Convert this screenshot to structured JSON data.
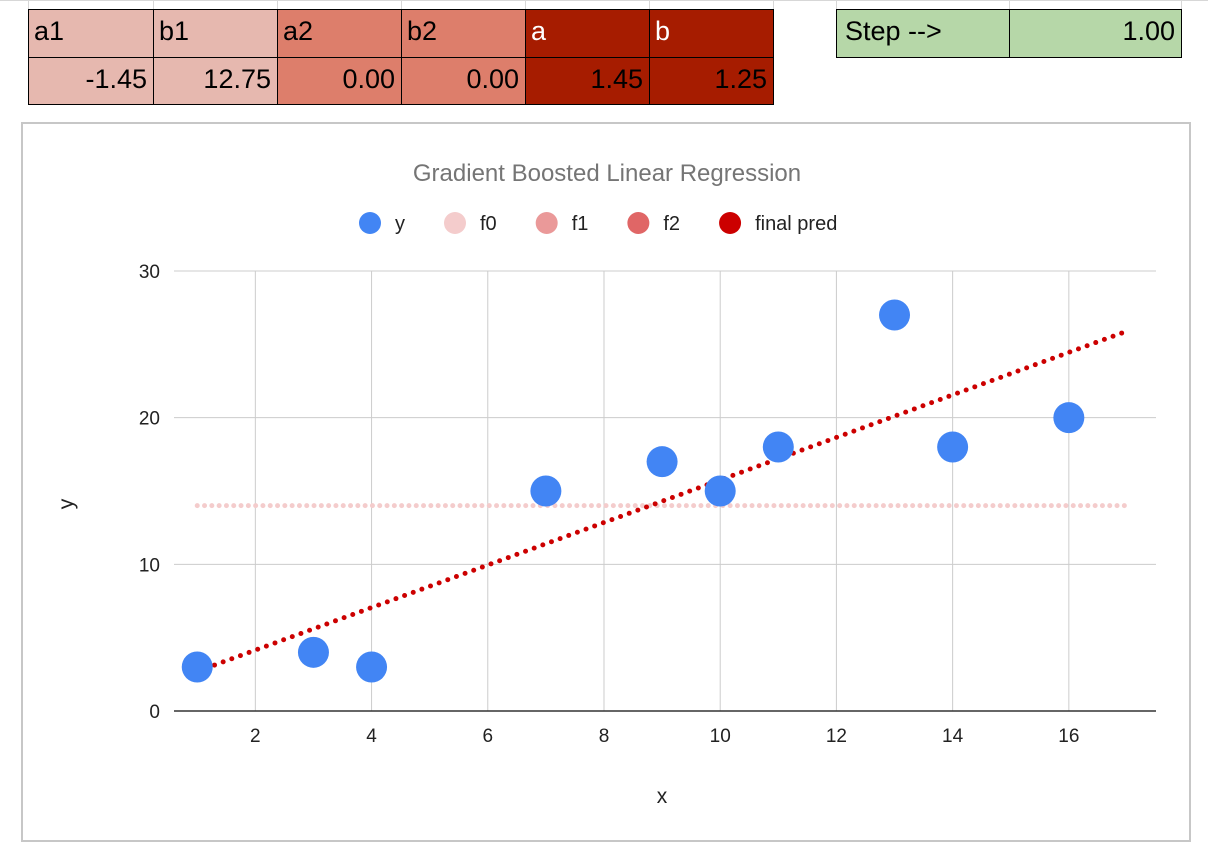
{
  "sheet": {
    "params": [
      {
        "label": "a1",
        "value": "-1.45",
        "color": "#e6b8af"
      },
      {
        "label": "b1",
        "value": "12.75",
        "color": "#e6b8af"
      },
      {
        "label": "a2",
        "value": "0.00",
        "color": "#dd7e6b"
      },
      {
        "label": "b2",
        "value": "0.00",
        "color": "#dd7e6b"
      },
      {
        "label": "a",
        "value": "1.45",
        "color": "#a61c00"
      },
      {
        "label": "b",
        "value": "1.25",
        "color": "#a61c00"
      }
    ],
    "step": {
      "label": "Step -->",
      "value": "1.00",
      "color": "#b6d7a8"
    }
  },
  "chart_data": {
    "type": "scatter",
    "title": "Gradient Boosted Linear Regression",
    "xlabel": "x",
    "ylabel": "y",
    "xlim": [
      0.6,
      17.5
    ],
    "ylim": [
      0,
      30
    ],
    "xticks": [
      2,
      4,
      6,
      8,
      10,
      12,
      14,
      16
    ],
    "yticks": [
      0,
      10,
      20,
      30
    ],
    "grid": true,
    "legend_position": "top",
    "legend": [
      {
        "name": "y",
        "color": "#4285f4"
      },
      {
        "name": "f0",
        "color": "#f4cccc"
      },
      {
        "name": "f1",
        "color": "#ea9999"
      },
      {
        "name": "f2",
        "color": "#e06666"
      },
      {
        "name": "final pred",
        "color": "#cc0000"
      }
    ],
    "series": [
      {
        "name": "y",
        "color": "#4285f4",
        "style": "points",
        "x": [
          1,
          3,
          4,
          7,
          9,
          10,
          11,
          13,
          14,
          16
        ],
        "y": [
          3,
          4,
          3,
          15,
          17,
          15,
          18,
          27,
          18,
          20
        ]
      },
      {
        "name": "f0",
        "color": "#f4cccc",
        "style": "dotted-line",
        "x": [
          1,
          17
        ],
        "y": [
          14,
          14
        ]
      },
      {
        "name": "final pred",
        "color": "#cc0000",
        "style": "dotted-line",
        "x": [
          1,
          17
        ],
        "y": [
          2.7,
          25.9
        ]
      }
    ]
  }
}
